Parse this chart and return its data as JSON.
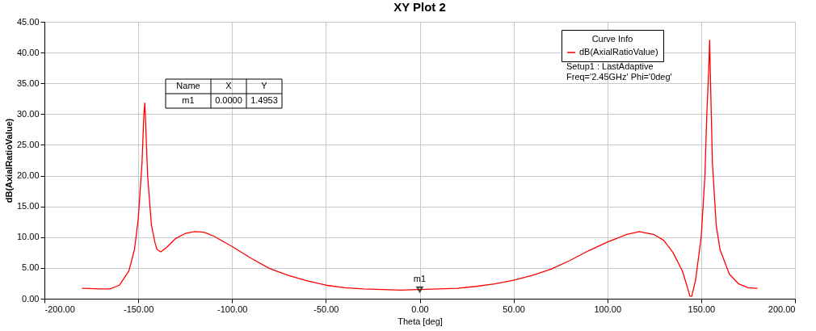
{
  "chart_data": {
    "type": "line",
    "title": "XY Plot 2",
    "xlabel": "Theta [deg]",
    "ylabel": "dB(AxialRatioValue)",
    "legend_title": "Curve Info",
    "legend": "top right",
    "x": [
      -180,
      -170,
      -165,
      -160,
      -155,
      -152,
      -150,
      -148,
      -147,
      -146.5,
      -146,
      -145,
      -143,
      -141,
      -140,
      -138,
      -135,
      -130,
      -125,
      -120,
      -115,
      -110,
      -100,
      -90,
      -80,
      -70,
      -60,
      -50,
      -40,
      -30,
      -20,
      -10,
      0,
      10,
      20,
      30,
      40,
      50,
      60,
      70,
      80,
      90,
      100,
      110,
      117,
      125,
      130,
      135,
      140,
      143,
      144,
      145,
      147,
      150,
      152,
      153,
      154,
      154.5,
      155,
      156,
      158,
      160,
      165,
      170,
      175,
      180
    ],
    "series": [
      {
        "name": "dB(AxialRatioValue)",
        "color": "#ff0000",
        "values": [
          1.7,
          1.6,
          1.6,
          2.2,
          4.5,
          8,
          13,
          22,
          30,
          31.8,
          28,
          20,
          12,
          9,
          8,
          7.6,
          8.3,
          9.8,
          10.6,
          10.9,
          10.8,
          10.2,
          8.5,
          6.6,
          4.9,
          3.8,
          2.9,
          2.2,
          1.8,
          1.6,
          1.5,
          1.4,
          1.4953,
          1.6,
          1.7,
          2.0,
          2.4,
          3.0,
          3.8,
          4.8,
          6.2,
          7.8,
          9.2,
          10.4,
          10.9,
          10.4,
          9.5,
          7.5,
          4.5,
          1.5,
          0.4,
          0.4,
          3,
          10,
          20,
          30,
          37,
          42,
          35,
          22,
          12,
          8,
          4,
          2.4,
          1.8,
          1.7
        ]
      }
    ],
    "xlim": [
      -200,
      200
    ],
    "xticks": [
      {
        "value": -200,
        "label": "-200.00"
      },
      {
        "value": -150,
        "label": "-150.00"
      },
      {
        "value": -100,
        "label": "-100.00"
      },
      {
        "value": -50,
        "label": "-50.00"
      },
      {
        "value": 0,
        "label": "0.00"
      },
      {
        "value": 50,
        "label": "50.00"
      },
      {
        "value": 100,
        "label": "100.00"
      },
      {
        "value": 150,
        "label": "150.00"
      },
      {
        "value": 200,
        "label": "200.00"
      }
    ],
    "ylim": [
      0,
      45
    ],
    "yticks": [
      {
        "value": 0,
        "label": "0.00"
      },
      {
        "value": 5,
        "label": "5.00"
      },
      {
        "value": 10,
        "label": "10.00"
      },
      {
        "value": 15,
        "label": "15.00"
      },
      {
        "value": 20,
        "label": "20.00"
      },
      {
        "value": 25,
        "label": "25.00"
      },
      {
        "value": 30,
        "label": "30.00"
      },
      {
        "value": 35,
        "label": "35.00"
      },
      {
        "value": 40,
        "label": "40.00"
      },
      {
        "value": 45,
        "label": "45.00"
      }
    ],
    "grid": true,
    "marker": "none",
    "line_style": "solid",
    "annotations": [
      "Setup1 : LastAdaptive",
      "Freq='2.45GHz' Phi='0deg'",
      "Name",
      "X",
      "Y",
      "m1",
      "0.0000",
      "1.4953",
      {
        "text": "m1",
        "x": 0,
        "y": 1.4953
      }
    ]
  }
}
